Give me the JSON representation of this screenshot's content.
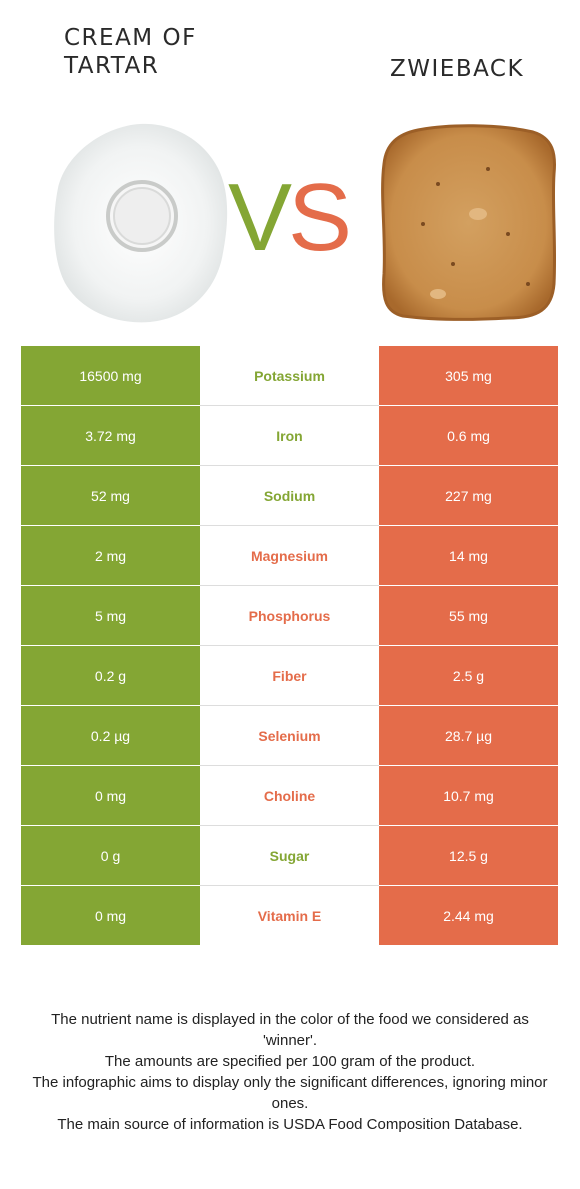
{
  "header": {
    "left_title": "CREAM OF TARTAR",
    "right_title": "ZWIEBACK",
    "vs_left": "V",
    "vs_right": "S"
  },
  "colors": {
    "left_food": "#84a634",
    "right_food": "#e46c4a"
  },
  "rows": [
    {
      "left": "16500 mg",
      "nutrient": "Potassium",
      "right": "305 mg",
      "winner": "left"
    },
    {
      "left": "3.72 mg",
      "nutrient": "Iron",
      "right": "0.6 mg",
      "winner": "left"
    },
    {
      "left": "52 mg",
      "nutrient": "Sodium",
      "right": "227 mg",
      "winner": "left"
    },
    {
      "left": "2 mg",
      "nutrient": "Magnesium",
      "right": "14 mg",
      "winner": "right"
    },
    {
      "left": "5 mg",
      "nutrient": "Phosphorus",
      "right": "55 mg",
      "winner": "right"
    },
    {
      "left": "0.2 g",
      "nutrient": "Fiber",
      "right": "2.5 g",
      "winner": "right"
    },
    {
      "left": "0.2 µg",
      "nutrient": "Selenium",
      "right": "28.7 µg",
      "winner": "right"
    },
    {
      "left": "0 mg",
      "nutrient": "Choline",
      "right": "10.7 mg",
      "winner": "right"
    },
    {
      "left": "0 g",
      "nutrient": "Sugar",
      "right": "12.5 g",
      "winner": "left"
    },
    {
      "left": "0 mg",
      "nutrient": "Vitamin E",
      "right": "2.44 mg",
      "winner": "right"
    }
  ],
  "footer": {
    "line1": "The nutrient name is displayed in the color of the food we considered as 'winner'.",
    "line2": "The amounts are specified per 100 gram of the product.",
    "line3": "The infographic aims to display only the significant differences, ignoring minor ones.",
    "line4": "The main source of information is USDA Food Composition Database."
  }
}
